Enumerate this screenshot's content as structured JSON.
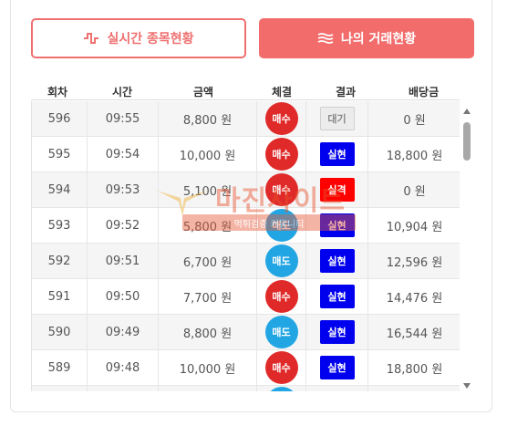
{
  "tabs": [
    {
      "label": "실시간 종목현황",
      "icon": "pulse-icon"
    },
    {
      "label": "나의 거래현황",
      "icon": "waves-icon"
    }
  ],
  "columns": [
    "회차",
    "시간",
    "금액",
    "체결",
    "결과",
    "배당금"
  ],
  "rows": [
    {
      "round": "596",
      "time": "09:55",
      "amount": "8,800 원",
      "exec": "매수",
      "exec_type": "sell",
      "result": "대기",
      "result_type": "wait",
      "payout": "0 원"
    },
    {
      "round": "595",
      "time": "09:54",
      "amount": "10,000 원",
      "exec": "매수",
      "exec_type": "sell",
      "result": "실현",
      "result_type": "win",
      "payout": "18,800 원"
    },
    {
      "round": "594",
      "time": "09:53",
      "amount": "5,100 원",
      "exec": "매수",
      "exec_type": "sell",
      "result": "실격",
      "result_type": "lose",
      "payout": "0 원"
    },
    {
      "round": "593",
      "time": "09:52",
      "amount": "5,800 원",
      "exec": "매도",
      "exec_type": "buy",
      "result": "실현",
      "result_type": "win",
      "payout": "10,904 원"
    },
    {
      "round": "592",
      "time": "09:51",
      "amount": "6,700 원",
      "exec": "매도",
      "exec_type": "buy",
      "result": "실현",
      "result_type": "win",
      "payout": "12,596 원"
    },
    {
      "round": "591",
      "time": "09:50",
      "amount": "7,700 원",
      "exec": "매수",
      "exec_type": "sell",
      "result": "실현",
      "result_type": "win",
      "payout": "14,476 원"
    },
    {
      "round": "590",
      "time": "09:49",
      "amount": "8,800 원",
      "exec": "매도",
      "exec_type": "buy",
      "result": "실현",
      "result_type": "win",
      "payout": "16,544 원"
    },
    {
      "round": "589",
      "time": "09:48",
      "amount": "10,000 원",
      "exec": "매수",
      "exec_type": "sell",
      "result": "실현",
      "result_type": "win",
      "payout": "18,800 원"
    },
    {
      "round": "",
      "time": "",
      "amount": "",
      "exec": "",
      "exec_type": "buy",
      "result": "",
      "result_type": "lose",
      "payout": ""
    }
  ],
  "watermark": {
    "title": "마진사이트",
    "subtitle": "먹튀검증 커뮤니티"
  },
  "colors": {
    "accent": "#f26c6c",
    "sell": "#e02a2a",
    "buy": "#22a6e3",
    "win": "#0000ee",
    "lose": "#ff0000"
  }
}
